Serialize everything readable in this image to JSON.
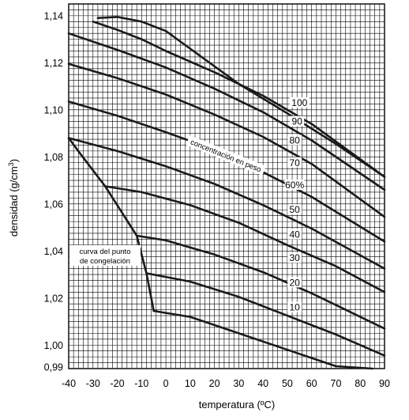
{
  "chart_data": {
    "type": "line",
    "title": "",
    "xlabel": "temperatura (ºC)",
    "ylabel": "densidad (g/cm3)",
    "ylabel_base": "densidad (g/cm",
    "ylabel_sup": "3",
    "ylabel_close": ")",
    "xlim": [
      -40,
      90
    ],
    "ylim": [
      0.99,
      1.145
    ],
    "grid": true,
    "x_ticks": [
      {
        "value": -40,
        "label": "-40"
      },
      {
        "value": -30,
        "label": "-30"
      },
      {
        "value": -20,
        "label": "-20"
      },
      {
        "value": -10,
        "label": "-10"
      },
      {
        "value": 0,
        "label": "0"
      },
      {
        "value": 10,
        "label": "10"
      },
      {
        "value": 20,
        "label": "20"
      },
      {
        "value": 30,
        "label": "30"
      },
      {
        "value": 40,
        "label": "40"
      },
      {
        "value": 50,
        "label": "50"
      },
      {
        "value": 60,
        "label": "60"
      },
      {
        "value": 70,
        "label": "70"
      },
      {
        "value": 80,
        "label": "80"
      },
      {
        "value": 90,
        "label": "90"
      }
    ],
    "y_ticks": [
      {
        "value": 0.99,
        "label": "0,99"
      },
      {
        "value": 1.0,
        "label": "1,00"
      },
      {
        "value": 1.02,
        "label": "1,02"
      },
      {
        "value": 1.04,
        "label": "1,04"
      },
      {
        "value": 1.06,
        "label": "1,06"
      },
      {
        "value": 1.08,
        "label": "1,08"
      },
      {
        "value": 1.1,
        "label": "1,10"
      },
      {
        "value": 1.12,
        "label": "1,12"
      },
      {
        "value": 1.14,
        "label": "1,14"
      }
    ],
    "series": [
      {
        "name": "10",
        "x": [
          -5,
          10,
          30,
          50,
          70,
          85
        ],
        "y": [
          1.0145,
          1.012,
          1.005,
          0.998,
          0.991,
          0.985
        ]
      },
      {
        "name": "20",
        "x": [
          -8,
          10,
          30,
          50,
          70,
          90
        ],
        "y": [
          1.0305,
          1.027,
          1.0205,
          1.0125,
          1.0045,
          0.9955
        ]
      },
      {
        "name": "30",
        "x": [
          -12,
          0,
          20,
          40,
          60,
          90
        ],
        "y": [
          1.0465,
          1.0445,
          1.0385,
          1.031,
          1.022,
          1.007
        ]
      },
      {
        "name": "40",
        "x": [
          -25,
          -10,
          10,
          30,
          50,
          70,
          90
        ],
        "y": [
          1.0675,
          1.065,
          1.0595,
          1.052,
          1.0425,
          1.0335,
          1.0225
        ]
      },
      {
        "name": "50",
        "x": [
          -40,
          -20,
          0,
          20,
          40,
          60,
          90
        ],
        "y": [
          1.088,
          1.0825,
          1.076,
          1.0685,
          1.0595,
          1.0495,
          1.0325
        ]
      },
      {
        "name": "60%",
        "x": [
          -40,
          -20,
          0,
          20,
          40,
          60,
          90
        ],
        "y": [
          1.1035,
          1.0975,
          1.0905,
          1.083,
          1.0735,
          1.063,
          1.044
        ]
      },
      {
        "name": "70",
        "x": [
          -40,
          -20,
          0,
          20,
          40,
          60,
          90
        ],
        "y": [
          1.1195,
          1.1135,
          1.1065,
          1.098,
          1.0885,
          1.077,
          1.0545
        ]
      },
      {
        "name": "80",
        "x": [
          -40,
          -20,
          0,
          20,
          40,
          60,
          90
        ],
        "y": [
          1.1325,
          1.1255,
          1.118,
          1.109,
          1.099,
          1.087,
          1.066
        ]
      },
      {
        "name": "90",
        "x": [
          -30,
          -20,
          -10,
          0,
          20,
          40,
          60,
          90
        ],
        "y": [
          1.1375,
          1.134,
          1.13,
          1.125,
          1.116,
          1.106,
          1.094,
          1.0715
        ]
      },
      {
        "name": "100",
        "x": [
          -28,
          -20,
          -10,
          0,
          10,
          30,
          50,
          70,
          90
        ],
        "y": [
          1.139,
          1.1395,
          1.1375,
          1.1335,
          1.126,
          1.111,
          1.0985,
          1.0855,
          1.0715
        ]
      }
    ],
    "freezing_curve": {
      "label": "curva del punto de congelación",
      "label_line1": "curva del punto",
      "label_line2": "de congelación",
      "x": [
        -40,
        -35,
        -25,
        -12,
        -8,
        -5,
        -4
      ],
      "y": [
        1.088,
        1.081,
        1.0675,
        1.0465,
        1.0305,
        1.0145,
        1.0145
      ]
    },
    "annotations": {
      "concentration_label": "concentración en peso",
      "series_labels": [
        {
          "text": "100",
          "x": 55,
          "y": 1.103
        },
        {
          "text": "90",
          "x": 54,
          "y": 1.095
        },
        {
          "text": "80",
          "x": 53,
          "y": 1.087
        },
        {
          "text": "70",
          "x": 53,
          "y": 1.0775
        },
        {
          "text": "60%",
          "x": 53,
          "y": 1.068
        },
        {
          "text": "50",
          "x": 53,
          "y": 1.0575
        },
        {
          "text": "40",
          "x": 53,
          "y": 1.047
        },
        {
          "text": "30",
          "x": 53,
          "y": 1.037
        },
        {
          "text": "20",
          "x": 53,
          "y": 1.0265
        },
        {
          "text": "10",
          "x": 53,
          "y": 1.016
        }
      ]
    }
  }
}
